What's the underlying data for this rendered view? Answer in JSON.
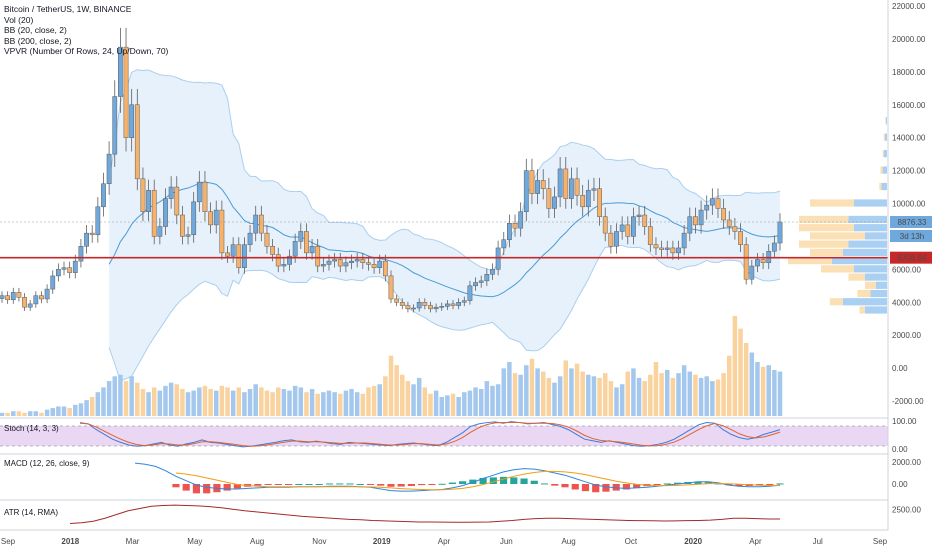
{
  "header": {
    "title": "Bitcoin / TetherUS, 1W, BINANCE",
    "indicators": [
      "Vol (20)",
      "BB (20, close, 2)",
      "BB (200, close, 2)",
      "VPVR (Number Of Rows, 24, Up/Down, 70)"
    ]
  },
  "price_axis": {
    "labels": [
      "22000.00",
      "20000.00",
      "18000.00",
      "16000.00",
      "14000.00",
      "12000.00",
      "10000.00",
      "8000.00",
      "6000.00",
      "4000.00",
      "2000.00",
      "0.00",
      "-2000.00"
    ],
    "current_price": "8876.33",
    "countdown": "3d 13h",
    "hline_price": "6708.64"
  },
  "time_axis": {
    "labels": [
      "Sep",
      "2018",
      "Mar",
      "May",
      "Aug",
      "Nov",
      "2019",
      "Apr",
      "Jun",
      "Aug",
      "Oct",
      "2020",
      "Apr",
      "Jul",
      "Sep"
    ]
  },
  "stoch": {
    "label": "Stoch (14, 3, 3)",
    "axis": [
      "100.00",
      "0.00"
    ]
  },
  "macd": {
    "label": "MACD (12, 26, close, 9)",
    "axis": [
      "2000.00",
      "0.00"
    ]
  },
  "atr": {
    "label": "ATR (14, RMA)",
    "axis": [
      "2500.00"
    ]
  },
  "colors": {
    "up": "#6fa8dc",
    "down": "#f6b26b",
    "bb_fill": "#e3f0fb",
    "bb_line": "#aacfee",
    "basis": "#4a9bd6",
    "hline": "#c62828",
    "vol_up": "#a4c8ed",
    "vol_down": "#f9d29e",
    "vpvr_up": "#a9d0f2",
    "vpvr_down": "#fbe0b5",
    "stoch_k": "#3d7bd9",
    "stoch_d": "#e0632f",
    "stoch_band": "#ead7f3",
    "macd_line": "#2e86de",
    "macd_signal": "#f39c12",
    "hist_pos": "#26a69a",
    "hist_neg": "#ef5350",
    "atr": "#a52a2a"
  },
  "chart_data": [
    {
      "type": "candlestick",
      "title": "Bitcoin / TetherUS, 1W, BINANCE",
      "ylim": [
        -3000,
        22500
      ],
      "close": [
        4400,
        4150,
        4600,
        4300,
        3700,
        3900,
        4400,
        4200,
        4800,
        5600,
        6000,
        6100,
        5800,
        6500,
        7400,
        8200,
        8100,
        9800,
        11200,
        13000,
        16500,
        19500,
        14000,
        16000,
        11500,
        9500,
        10800,
        8000,
        8600,
        10300,
        11000,
        9300,
        8000,
        8100,
        10100,
        11300,
        9500,
        8700,
        9600,
        7000,
        6800,
        7500,
        6100,
        7500,
        8200,
        9300,
        8200,
        7400,
        6900,
        6200,
        6300,
        6800,
        7700,
        8300,
        7000,
        7400,
        6200,
        6300,
        6500,
        6600,
        6200,
        6400,
        6500,
        6600,
        6400,
        6300,
        6100,
        6500,
        5600,
        4200,
        4000,
        3800,
        3600,
        3650,
        4000,
        3800,
        3600,
        3700,
        3750,
        3900,
        3800,
        4000,
        4100,
        5000,
        5200,
        5300,
        5700,
        6000,
        7300,
        7800,
        8800,
        8500,
        9500,
        12000,
        10600,
        11400,
        10900,
        9700,
        10400,
        12100,
        10300,
        11500,
        10500,
        9800,
        10800,
        10900,
        9200,
        8200,
        7400,
        8300,
        8700,
        8000,
        9200,
        9300,
        8600,
        7500,
        7300,
        7200,
        7300,
        7000,
        7300,
        8200,
        9200,
        8700,
        9600,
        9900,
        10300,
        9700,
        9000,
        8600,
        8300,
        7500,
        5400,
        6200,
        6600,
        6400,
        7100,
        7600,
        8876
      ]
    },
    {
      "type": "bar",
      "title": "Vol (20)",
      "note": "relative weekly volume",
      "values": [
        2,
        2,
        3,
        3,
        2,
        3,
        3,
        2,
        4,
        5,
        6,
        6,
        5,
        7,
        8,
        10,
        12,
        15,
        18,
        22,
        25,
        26,
        22,
        25,
        21,
        17,
        15,
        18,
        16,
        19,
        21,
        20,
        17,
        15,
        16,
        18,
        19,
        17,
        16,
        19,
        18,
        16,
        18,
        15,
        17,
        20,
        18,
        16,
        15,
        18,
        17,
        16,
        19,
        18,
        15,
        17,
        14,
        15,
        16,
        15,
        14,
        16,
        17,
        15,
        14,
        18,
        19,
        20,
        25,
        38,
        32,
        26,
        22,
        20,
        24,
        18,
        14,
        16,
        12,
        13,
        14,
        12,
        15,
        16,
        18,
        17,
        22,
        19,
        20,
        30,
        34,
        27,
        26,
        32,
        36,
        30,
        28,
        24,
        21,
        25,
        35,
        30,
        33,
        28,
        26,
        25,
        24,
        27,
        22,
        18,
        20,
        28,
        30,
        24,
        22,
        26,
        34,
        27,
        29,
        24,
        27,
        32,
        28,
        26,
        24,
        25,
        22,
        23,
        27,
        38,
        63,
        55,
        46,
        40,
        34,
        31,
        32,
        29,
        28
      ]
    },
    {
      "type": "line",
      "title": "Stoch (14, 3, 3)",
      "ylim": [
        0,
        100
      ],
      "series": [
        {
          "name": "%K",
          "values": [
            92,
            88,
            70,
            55,
            40,
            30,
            22,
            18,
            20,
            25,
            30,
            22,
            18,
            25,
            30,
            38,
            30,
            28,
            24,
            20,
            16,
            18,
            22,
            26,
            30,
            35,
            38,
            32,
            30,
            34,
            30,
            26,
            24,
            30,
            28,
            26,
            24,
            22,
            20,
            24,
            26,
            28,
            25,
            22,
            20,
            30,
            45,
            60,
            80,
            88,
            92,
            94,
            90,
            95,
            92,
            88,
            90,
            92,
            86,
            80,
            70,
            55,
            40,
            35,
            30,
            35,
            30,
            25,
            20,
            18,
            20,
            24,
            30,
            40,
            55,
            70,
            85,
            92,
            90,
            70,
            55,
            45,
            40,
            45,
            55,
            62,
            70
          ]
        },
        {
          "name": "%D",
          "values": [
            90,
            88,
            78,
            65,
            52,
            40,
            30,
            23,
            20,
            22,
            26,
            25,
            22,
            22,
            26,
            32,
            32,
            30,
            27,
            24,
            20,
            18,
            19,
            22,
            26,
            30,
            34,
            34,
            32,
            32,
            31,
            29,
            27,
            27,
            28,
            28,
            26,
            24,
            22,
            22,
            24,
            26,
            26,
            24,
            22,
            25,
            33,
            45,
            62,
            76,
            86,
            91,
            92,
            92,
            92,
            90,
            90,
            90,
            89,
            85,
            78,
            66,
            52,
            42,
            36,
            34,
            32,
            29,
            25,
            21,
            19,
            20,
            24,
            31,
            42,
            56,
            70,
            82,
            89,
            82,
            70,
            57,
            48,
            44,
            47,
            54,
            62
          ]
        }
      ]
    },
    {
      "type": "line",
      "title": "MACD (12, 26, close, 9)",
      "ylim": [
        -2000,
        2500
      ],
      "series": [
        {
          "name": "MACD",
          "values": [
            1900,
            1800,
            1600,
            1200,
            700,
            300,
            -100,
            -300,
            -400,
            -450,
            -450,
            -400,
            -350,
            -300,
            -300,
            -300,
            -250,
            -250,
            -250,
            -200,
            -200,
            -200,
            -250,
            -300,
            -450,
            -600,
            -650,
            -650,
            -600,
            -550,
            -500,
            -350,
            -150,
            150,
            500,
            800,
            1100,
            1300,
            1400,
            1350,
            1200,
            1000,
            800,
            500,
            200,
            -100,
            -250,
            -350,
            -400,
            -350,
            -300,
            -200,
            -100,
            0,
            100,
            200,
            200,
            100,
            -100,
            -200,
            -250,
            -250,
            -200,
            -100
          ]
        },
        {
          "name": "Signal",
          "values": [
            null,
            null,
            null,
            null,
            1000,
            900,
            750,
            550,
            350,
            150,
            -50,
            -150,
            -200,
            -250,
            -250,
            -250,
            -250,
            -250,
            -250,
            -250,
            -250,
            -250,
            -250,
            -260,
            -300,
            -350,
            -420,
            -470,
            -500,
            -520,
            -520,
            -480,
            -400,
            -250,
            -50,
            200,
            450,
            700,
            900,
            1050,
            1150,
            1150,
            1100,
            1000,
            850,
            650,
            450,
            250,
            100,
            -30,
            -100,
            -150,
            -150,
            -120,
            -80,
            -20,
            30,
            50,
            20,
            -20,
            -70,
            -110,
            -140,
            -150
          ]
        }
      ]
    },
    {
      "type": "line",
      "title": "ATR (14, RMA)",
      "series": [
        {
          "name": "ATR",
          "values": [
            600,
            700,
            900,
            1300,
            1800,
            2300,
            2600,
            2900,
            3000,
            3050,
            3000,
            2950,
            2850,
            2700,
            2500,
            2300,
            2150,
            2000,
            1850,
            1700,
            1550,
            1450,
            1350,
            1250,
            1150,
            1100,
            1000,
            950,
            900,
            850,
            800,
            800,
            780,
            760,
            760,
            780,
            800,
            900,
            1000,
            1150,
            1250,
            1300,
            1300,
            1250,
            1200,
            1150,
            1100,
            1050,
            1000,
            980,
            960,
            940,
            950,
            980,
            1000,
            1050,
            1150,
            1300,
            1300,
            1250,
            1200,
            1200
          ]
        }
      ]
    }
  ]
}
